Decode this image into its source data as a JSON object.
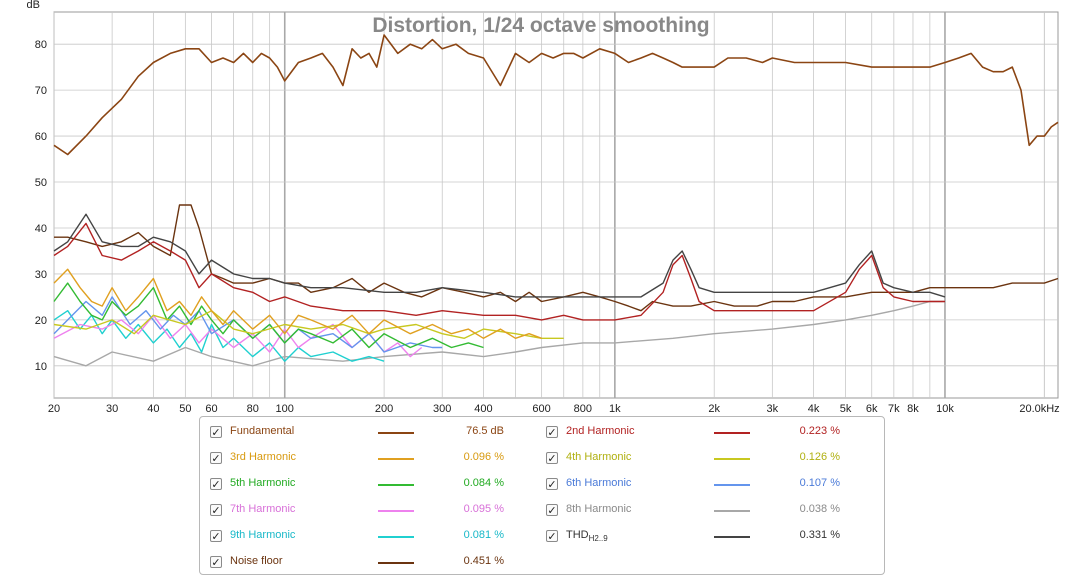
{
  "colors": {
    "fundamental": "#8b4513",
    "h2": "#b22222",
    "h3": "#e0a020",
    "h4": "#c8c820",
    "h5": "#33bb33",
    "h6": "#6495ed",
    "h7": "#ee82ee",
    "h8": "#a8a8a8",
    "h9": "#20d0d0",
    "thd": "#444444",
    "noise": "#6b3410",
    "grid": "#c8c8c8",
    "title": "#888888"
  },
  "chart_data": {
    "type": "line",
    "title": "Distortion, 1/24 octave smoothing",
    "ylabel": "dB",
    "xlabel": "",
    "xscale": "log",
    "xlim": [
      20,
      22000
    ],
    "ylim": [
      3,
      87
    ],
    "grid": true,
    "legend_position": "bottom",
    "y_ticks": [
      10,
      20,
      30,
      40,
      50,
      60,
      70,
      80
    ],
    "x_ticks": [
      {
        "v": 20,
        "label": "20"
      },
      {
        "v": 30,
        "label": "30"
      },
      {
        "v": 40,
        "label": "40"
      },
      {
        "v": 50,
        "label": "50"
      },
      {
        "v": 60,
        "label": "60"
      },
      {
        "v": 80,
        "label": "80"
      },
      {
        "v": 100,
        "label": "100"
      },
      {
        "v": 200,
        "label": "200"
      },
      {
        "v": 300,
        "label": "300"
      },
      {
        "v": 400,
        "label": "400"
      },
      {
        "v": 600,
        "label": "600"
      },
      {
        "v": 800,
        "label": "800"
      },
      {
        "v": 1000,
        "label": "1k"
      },
      {
        "v": 2000,
        "label": "2k"
      },
      {
        "v": 3000,
        "label": "3k"
      },
      {
        "v": 4000,
        "label": "4k"
      },
      {
        "v": 5000,
        "label": "5k"
      },
      {
        "v": 6000,
        "label": "6k"
      },
      {
        "v": 7000,
        "label": "7k"
      },
      {
        "v": 8000,
        "label": "8k"
      },
      {
        "v": 10000,
        "label": "10k"
      },
      {
        "v": 20000,
        "label": "20.0kHz"
      }
    ],
    "series": [
      {
        "key": "fundamental",
        "name": "Fundamental",
        "x": [
          20,
          22,
          25,
          28,
          32,
          36,
          40,
          45,
          50,
          55,
          60,
          65,
          70,
          75,
          80,
          85,
          90,
          95,
          100,
          110,
          120,
          130,
          140,
          150,
          160,
          170,
          180,
          190,
          200,
          220,
          240,
          260,
          280,
          300,
          330,
          360,
          400,
          450,
          500,
          550,
          600,
          650,
          700,
          750,
          800,
          900,
          1000,
          1100,
          1200,
          1300,
          1400,
          1500,
          1600,
          1800,
          2000,
          2200,
          2500,
          2800,
          3000,
          3500,
          4000,
          4500,
          5000,
          6000,
          7000,
          8000,
          9000,
          10000,
          11000,
          12000,
          13000,
          14000,
          15000,
          16000,
          17000,
          18000,
          19000,
          20000,
          21000,
          22000
        ],
        "y": [
          58,
          56,
          60,
          64,
          68,
          73,
          76,
          78,
          79,
          79,
          76,
          77,
          76,
          78,
          76,
          78,
          77,
          75,
          72,
          76,
          77,
          78,
          75,
          71,
          79,
          77,
          78,
          75,
          82,
          78,
          80,
          79,
          81,
          79,
          80,
          78,
          77,
          71,
          78,
          76,
          78,
          77,
          78,
          78,
          77,
          79,
          78,
          76,
          77,
          78,
          77,
          76,
          75,
          75,
          75,
          77,
          77,
          76,
          77,
          76,
          76,
          76,
          76,
          75,
          75,
          75,
          75,
          76,
          77,
          78,
          75,
          74,
          74,
          75,
          70,
          58,
          60,
          60,
          62,
          63
        ]
      },
      {
        "key": "noise",
        "name": "Noise floor",
        "x": [
          20,
          22,
          25,
          28,
          32,
          36,
          40,
          45,
          48,
          52,
          55,
          60,
          65,
          70,
          80,
          90,
          100,
          110,
          120,
          140,
          160,
          180,
          200,
          230,
          260,
          300,
          350,
          400,
          450,
          500,
          550,
          600,
          700,
          800,
          900,
          1000,
          1100,
          1200,
          1300,
          1500,
          1700,
          2000,
          2300,
          2700,
          3000,
          3500,
          4000,
          5000,
          6000,
          7000,
          8000,
          9000,
          10000,
          12000,
          14000,
          16000,
          18000,
          20000,
          22000
        ],
        "y": [
          38,
          38,
          37,
          36,
          37,
          39,
          36,
          34,
          45,
          45,
          40,
          30,
          29,
          28,
          28,
          29,
          28,
          28,
          26,
          27,
          29,
          26,
          28,
          26,
          25,
          27,
          26,
          25,
          26,
          24,
          26,
          24,
          25,
          26,
          25,
          24,
          23,
          22,
          24,
          23,
          23,
          24,
          23,
          23,
          24,
          24,
          25,
          25,
          26,
          26,
          26,
          27,
          27,
          27,
          27,
          28,
          28,
          28,
          29
        ]
      },
      {
        "key": "thd",
        "name": "THD",
        "x": [
          20,
          22,
          25,
          28,
          32,
          36,
          40,
          45,
          50,
          55,
          60,
          70,
          80,
          90,
          100,
          120,
          150,
          200,
          250,
          300,
          400,
          500,
          600,
          700,
          800,
          1000,
          1200,
          1400,
          1500,
          1600,
          1700,
          1800,
          2000,
          2500,
          3000,
          4000,
          5000,
          5500,
          6000,
          6500,
          7000,
          8000,
          9000,
          10000
        ],
        "y": [
          35,
          37,
          43,
          37,
          36,
          36,
          38,
          37,
          35,
          30,
          33,
          30,
          29,
          29,
          28,
          27,
          27,
          26,
          26,
          27,
          26,
          25,
          25,
          25,
          25,
          25,
          25,
          28,
          33,
          35,
          31,
          27,
          26,
          26,
          26,
          26,
          28,
          32,
          35,
          28,
          27,
          26,
          26,
          25
        ]
      },
      {
        "key": "h2",
        "name": "2nd Harmonic",
        "x": [
          20,
          22,
          25,
          28,
          32,
          36,
          40,
          45,
          50,
          55,
          60,
          70,
          80,
          90,
          100,
          120,
          150,
          200,
          250,
          300,
          400,
          500,
          600,
          700,
          800,
          1000,
          1200,
          1400,
          1500,
          1600,
          1700,
          1800,
          2000,
          2500,
          3000,
          4000,
          5000,
          5500,
          6000,
          6500,
          7000,
          8000,
          9000,
          10000
        ],
        "y": [
          34,
          36,
          41,
          34,
          33,
          35,
          37,
          35,
          33,
          27,
          30,
          27,
          26,
          24,
          25,
          23,
          22,
          22,
          21,
          22,
          21,
          21,
          20,
          21,
          20,
          20,
          21,
          26,
          32,
          34,
          29,
          24,
          22,
          22,
          22,
          22,
          26,
          31,
          34,
          27,
          25,
          24,
          24,
          24
        ]
      },
      {
        "key": "h3",
        "name": "3rd Harmonic",
        "x": [
          20,
          22,
          24,
          26,
          28,
          30,
          33,
          36,
          40,
          44,
          48,
          52,
          56,
          60,
          65,
          70,
          80,
          90,
          100,
          110,
          120,
          140,
          160,
          180,
          200,
          240,
          280,
          320,
          360,
          400,
          450,
          500,
          550,
          600
        ],
        "y": [
          28,
          31,
          27,
          24,
          23,
          27,
          22,
          25,
          29,
          22,
          24,
          21,
          25,
          22,
          19,
          22,
          18,
          21,
          17,
          21,
          20,
          18,
          21,
          17,
          20,
          17,
          19,
          17,
          18,
          16,
          18,
          16,
          17,
          16
        ]
      },
      {
        "key": "h4",
        "name": "4th Harmonic",
        "x": [
          20,
          25,
          30,
          35,
          40,
          50,
          60,
          70,
          80,
          100,
          120,
          150,
          180,
          200,
          250,
          300,
          350,
          400,
          500,
          600,
          700
        ],
        "y": [
          19,
          18,
          20,
          17,
          21,
          19,
          22,
          18,
          17,
          19,
          18,
          19,
          17,
          18,
          19,
          17,
          16,
          18,
          17,
          16,
          16
        ]
      },
      {
        "key": "h5",
        "name": "5th Harmonic",
        "x": [
          20,
          22,
          24,
          26,
          28,
          30,
          33,
          36,
          40,
          44,
          48,
          52,
          56,
          60,
          65,
          70,
          80,
          90,
          100,
          110,
          120,
          140,
          160,
          180,
          200,
          240,
          280,
          320,
          360,
          400
        ],
        "y": [
          24,
          28,
          24,
          21,
          20,
          24,
          21,
          23,
          27,
          20,
          23,
          19,
          23,
          20,
          17,
          20,
          16,
          19,
          15,
          18,
          17,
          15,
          18,
          14,
          17,
          14,
          16,
          14,
          15,
          14
        ]
      },
      {
        "key": "h6",
        "name": "6th Harmonic",
        "x": [
          20,
          22,
          25,
          28,
          30,
          34,
          38,
          42,
          46,
          50,
          55,
          60,
          70,
          80,
          90,
          100,
          110,
          120,
          140,
          160,
          180,
          200,
          240,
          280,
          300
        ],
        "y": [
          17,
          20,
          24,
          21,
          25,
          19,
          22,
          18,
          21,
          19,
          22,
          17,
          20,
          16,
          19,
          15,
          18,
          16,
          17,
          14,
          17,
          13,
          15,
          14,
          14
        ]
      },
      {
        "key": "h7",
        "name": "7th Harmonic",
        "x": [
          20,
          24,
          28,
          32,
          36,
          40,
          45,
          50,
          55,
          60,
          70,
          80,
          90,
          100,
          110,
          120,
          140,
          160,
          180,
          200,
          220,
          240,
          260
        ],
        "y": [
          16,
          19,
          18,
          20,
          17,
          21,
          16,
          19,
          15,
          18,
          14,
          17,
          13,
          18,
          14,
          16,
          19,
          14,
          17,
          13,
          15,
          12,
          14
        ]
      },
      {
        "key": "h8",
        "name": "8th Harmonic",
        "x": [
          20,
          25,
          30,
          40,
          50,
          60,
          80,
          100,
          150,
          200,
          300,
          400,
          500,
          600,
          800,
          1000,
          1500,
          2000,
          3000,
          4000,
          5000,
          6000,
          7000,
          8000,
          9000,
          10000
        ],
        "y": [
          12,
          10,
          13,
          11,
          14,
          12,
          10,
          12,
          11,
          12,
          13,
          12,
          13,
          14,
          15,
          15,
          16,
          17,
          18,
          19,
          20,
          21,
          22,
          23,
          24,
          24
        ]
      },
      {
        "key": "h9",
        "name": "9th Harmonic",
        "x": [
          20,
          22,
          24,
          26,
          28,
          30,
          33,
          36,
          40,
          44,
          48,
          52,
          56,
          60,
          65,
          70,
          80,
          90,
          100,
          110,
          120,
          140,
          160,
          180,
          200
        ],
        "y": [
          20,
          22,
          18,
          21,
          17,
          20,
          16,
          19,
          15,
          18,
          14,
          17,
          13,
          19,
          14,
          16,
          12,
          15,
          11,
          14,
          12,
          13,
          11,
          12,
          11
        ]
      }
    ]
  },
  "legend": [
    {
      "name": "Fundamental",
      "value": "76.5 dB",
      "color_key": "fundamental",
      "text_color": "#8b4513",
      "col": 0,
      "row": 0
    },
    {
      "name": "2nd Harmonic",
      "value": "0.223 %",
      "color_key": "h2",
      "text_color": "#b22222",
      "col": 1,
      "row": 0
    },
    {
      "name": "3rd Harmonic",
      "value": "0.096 %",
      "color_key": "h3",
      "text_color": "#d89a10",
      "col": 0,
      "row": 1
    },
    {
      "name": "4th Harmonic",
      "value": "0.126 %",
      "color_key": "h4",
      "text_color": "#b0b010",
      "col": 1,
      "row": 1
    },
    {
      "name": "5th Harmonic",
      "value": "0.084 %",
      "color_key": "h5",
      "text_color": "#22aa22",
      "col": 0,
      "row": 2
    },
    {
      "name": "6th Harmonic",
      "value": "0.107 %",
      "color_key": "h6",
      "text_color": "#4a7ad8",
      "col": 1,
      "row": 2
    },
    {
      "name": "7th Harmonic",
      "value": "0.095 %",
      "color_key": "h7",
      "text_color": "#d870d8",
      "col": 0,
      "row": 3
    },
    {
      "name": "8th Harmonic",
      "value": "0.038 %",
      "color_key": "h8",
      "text_color": "#8a8a8a",
      "col": 1,
      "row": 3
    },
    {
      "name": "9th Harmonic",
      "value": "0.081 %",
      "color_key": "h9",
      "text_color": "#18b8c8",
      "col": 0,
      "row": 4
    },
    {
      "name": "THD",
      "sub": "H2..9",
      "value": "0.331 %",
      "color_key": "thd",
      "text_color": "#333333",
      "col": 1,
      "row": 4
    },
    {
      "name": "Noise floor",
      "value": "0.451 %",
      "color_key": "noise",
      "text_color": "#6b3410",
      "col": 0,
      "row": 5
    }
  ],
  "legend_check": "✓"
}
